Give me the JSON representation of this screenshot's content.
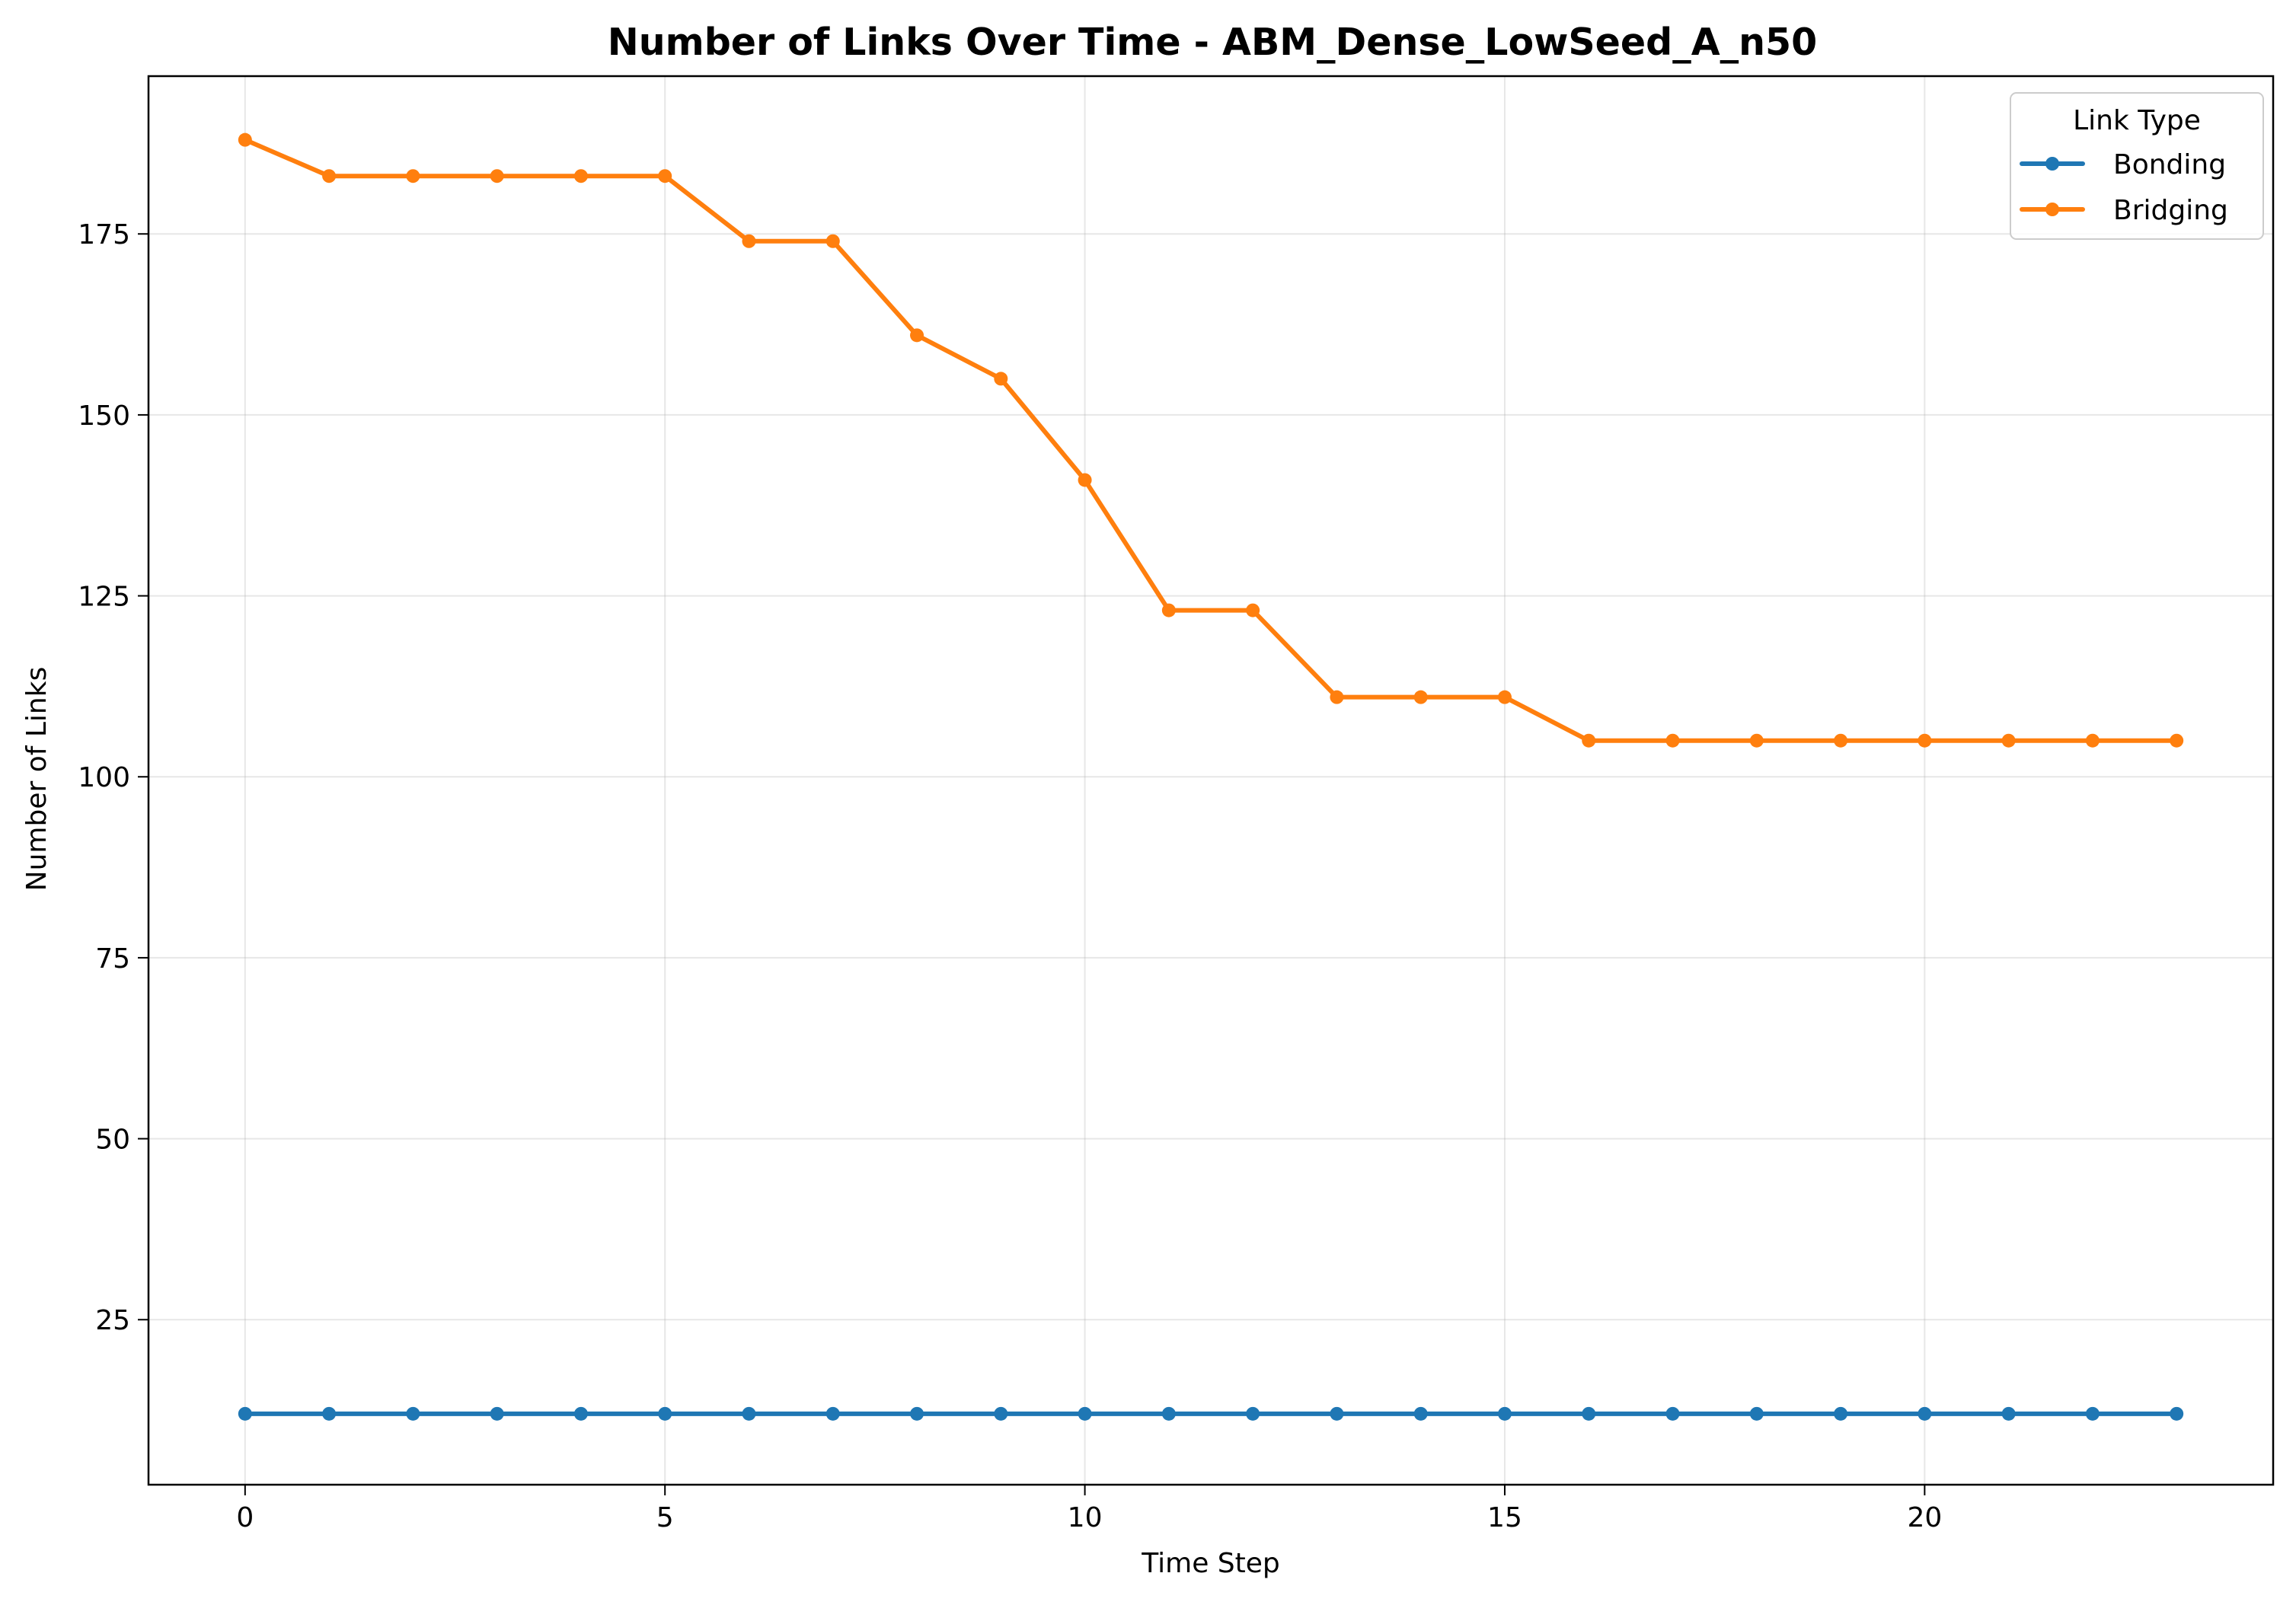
{
  "chart_data": {
    "type": "line",
    "title": "Number of Links Over Time - ABM_Dense_LowSeed_A_n50",
    "xlabel": "Time Step",
    "ylabel": "Number of Links",
    "xlim": [
      -1.15,
      24.15
    ],
    "ylim": [
      2.2,
      196.8
    ],
    "xticks": [
      0,
      5,
      10,
      15,
      20
    ],
    "yticks": [
      25,
      50,
      75,
      100,
      125,
      150,
      175
    ],
    "grid": true,
    "legend": {
      "title": "Link Type",
      "placement": "top-right"
    },
    "x": [
      0,
      1,
      2,
      3,
      4,
      5,
      6,
      7,
      8,
      9,
      10,
      11,
      12,
      13,
      14,
      15,
      16,
      17,
      18,
      19,
      20,
      21,
      22,
      23
    ],
    "series": [
      {
        "name": "Bonding",
        "color": "#1f77b4",
        "marker": "circle",
        "values": [
          12,
          12,
          12,
          12,
          12,
          12,
          12,
          12,
          12,
          12,
          12,
          12,
          12,
          12,
          12,
          12,
          12,
          12,
          12,
          12,
          12,
          12,
          12,
          12
        ]
      },
      {
        "name": "Bridging",
        "color": "#ff7f0e",
        "marker": "circle",
        "values": [
          188,
          183,
          183,
          183,
          183,
          183,
          174,
          174,
          161,
          155,
          141,
          123,
          123,
          111,
          111,
          111,
          105,
          105,
          105,
          105,
          105,
          105,
          105,
          105
        ]
      }
    ]
  }
}
